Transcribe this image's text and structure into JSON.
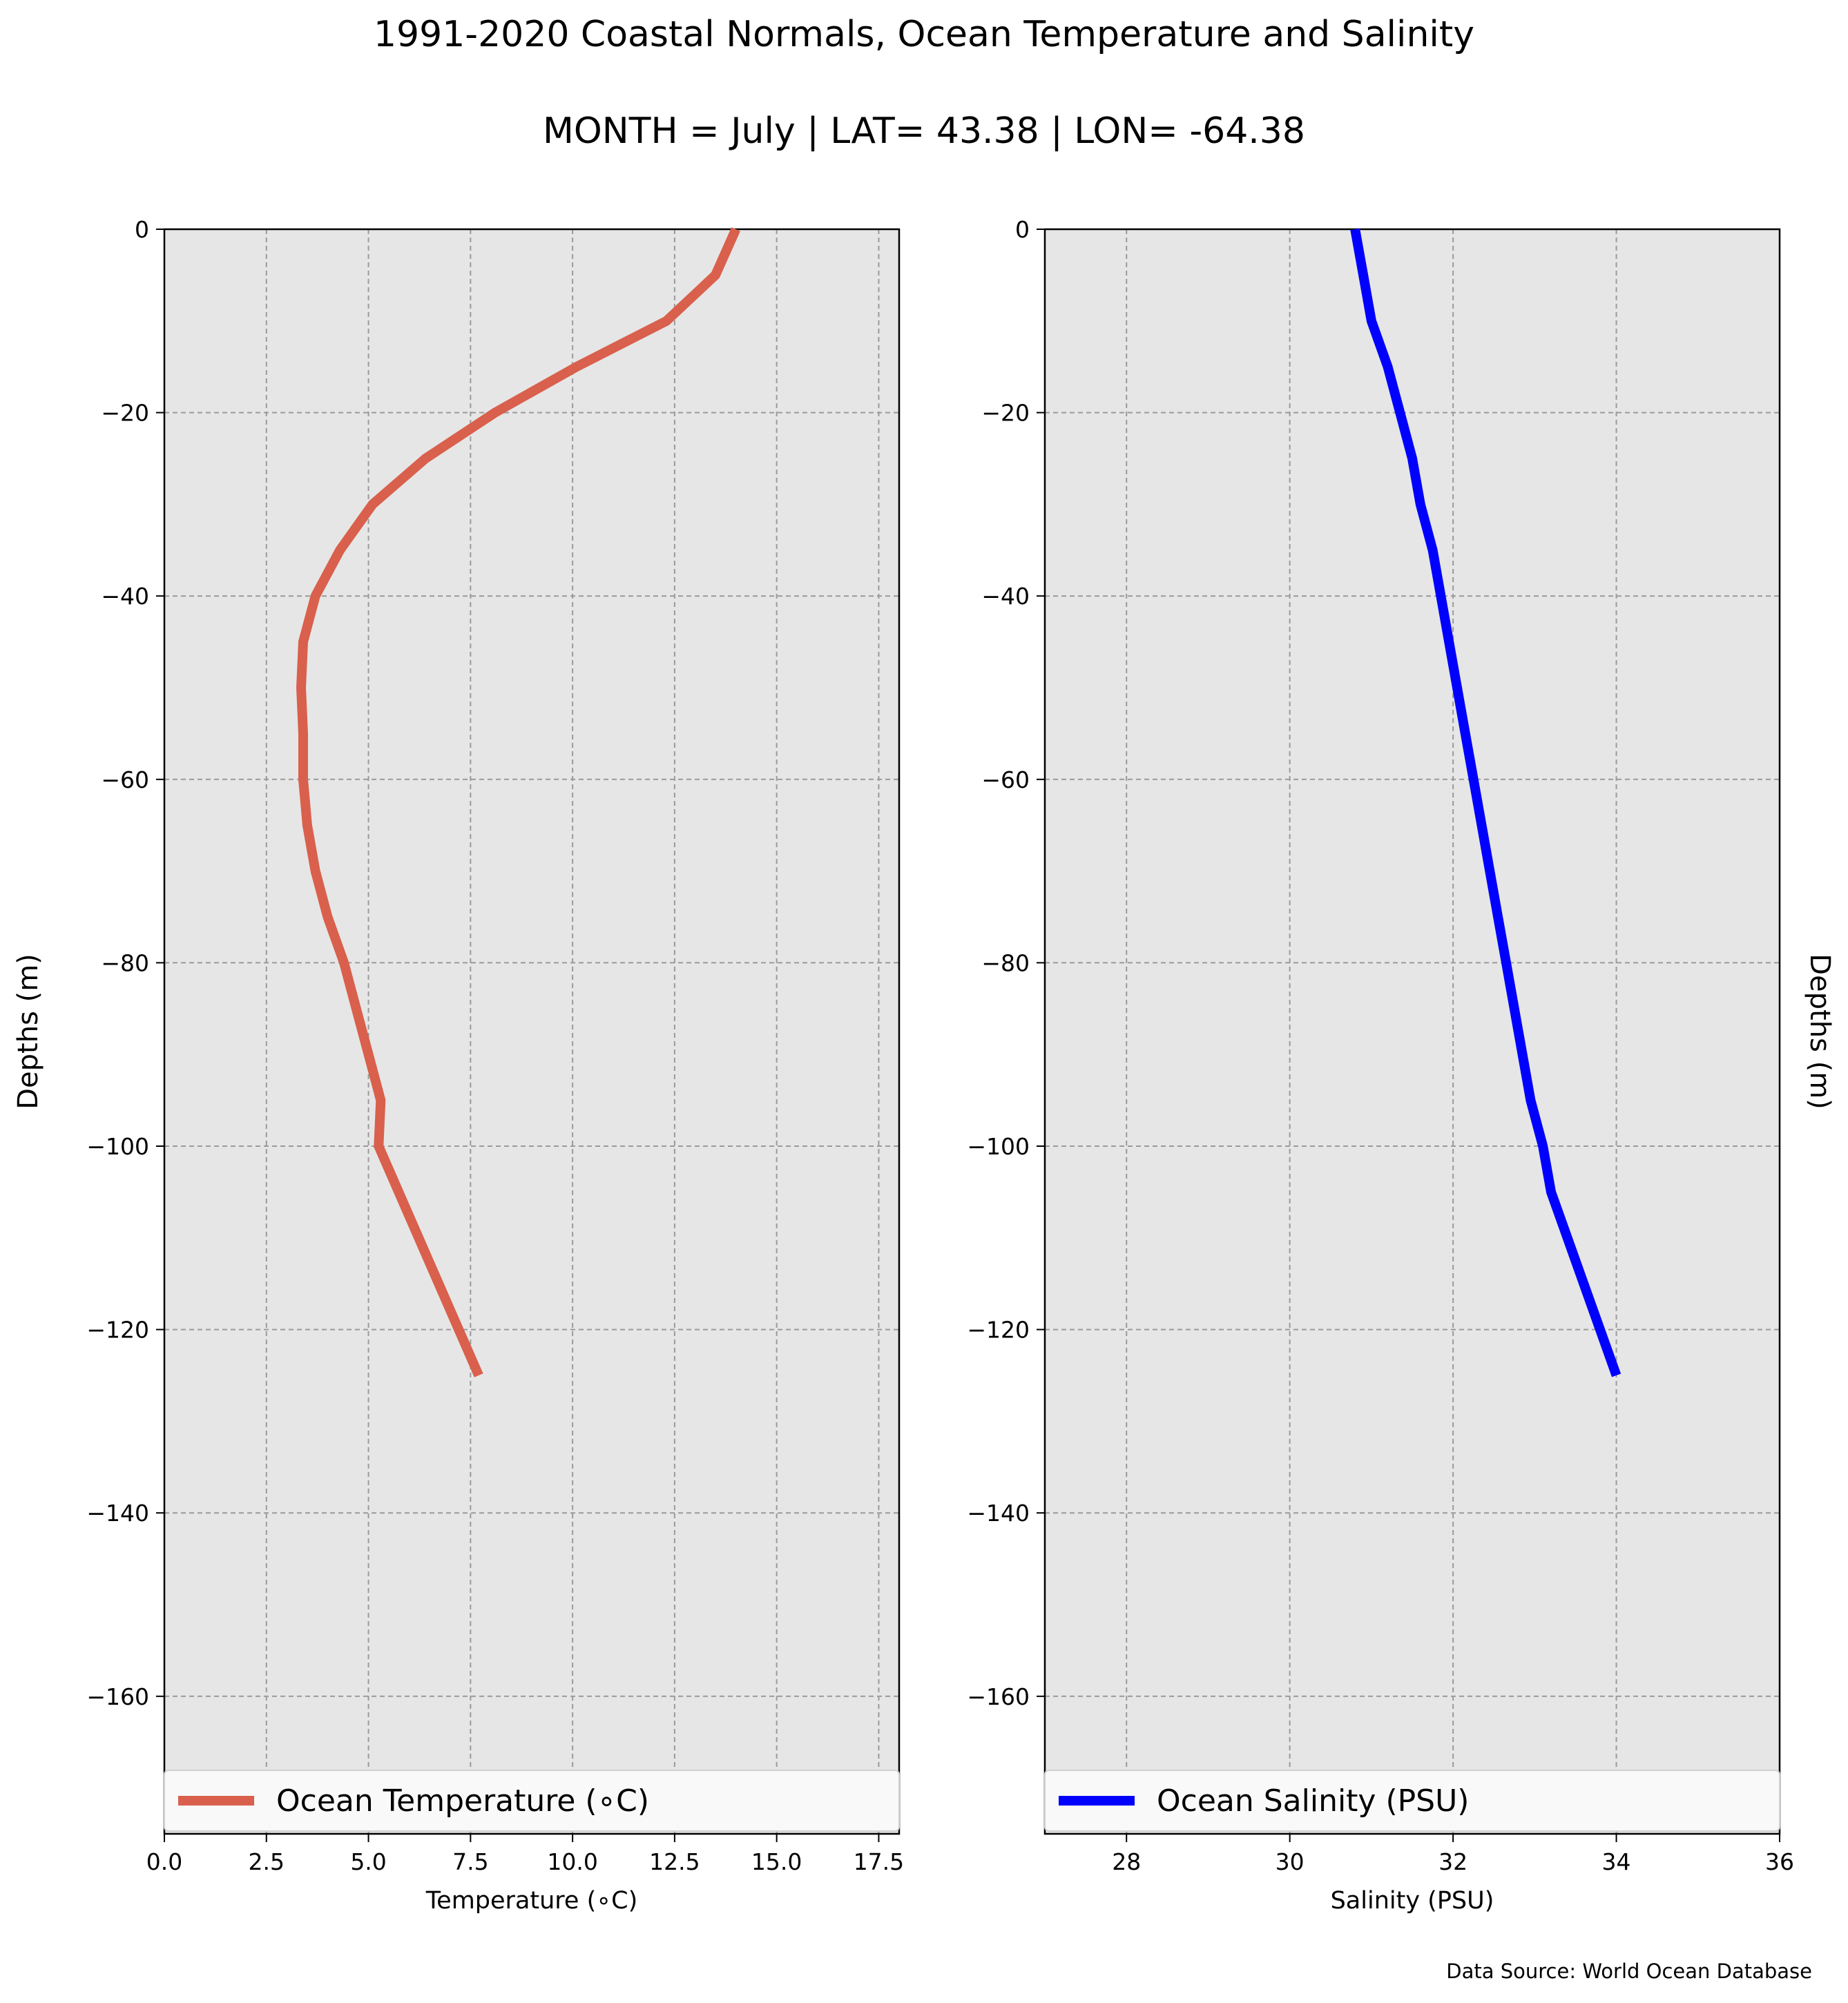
{
  "figure": {
    "title": "1991-2020 Coastal Normals, Ocean Temperature and Salinity",
    "subtitle": "MONTH = July | LAT= 43.38 | LON= -64.38",
    "source": "Data Source: World Ocean Database"
  },
  "colors": {
    "temperature": "#d9604c",
    "salinity": "#0000ff",
    "plot_bg": "#e6e6e6",
    "grid": "#9a9a9a"
  },
  "chart_data": [
    {
      "type": "line",
      "xlabel": "Temperature (∘C)",
      "ylabel": "Depths (m)",
      "xlim": [
        0,
        18
      ],
      "ylim": [
        -175,
        0
      ],
      "xticks": [
        0.0,
        2.5,
        5.0,
        7.5,
        10.0,
        12.5,
        15.0,
        17.5
      ],
      "xtick_labels": [
        "0.0",
        "2.5",
        "5.0",
        "7.5",
        "10.0",
        "12.5",
        "15.0",
        "17.5"
      ],
      "yticks": [
        0,
        -20,
        -40,
        -60,
        -80,
        -100,
        -120,
        -140,
        -160
      ],
      "ytick_labels": [
        "0",
        "−20",
        "−40",
        "−60",
        "−80",
        "−100",
        "−120",
        "−140",
        "−160"
      ],
      "grid": true,
      "legend_position": "bottom",
      "series": [
        {
          "name": "Ocean Temperature (∘C)",
          "x": [
            14.0,
            13.5,
            12.3,
            10.1,
            8.1,
            6.4,
            5.1,
            4.3,
            3.7,
            3.4,
            3.35,
            3.4,
            3.4,
            3.5,
            3.7,
            4.0,
            4.4,
            4.7,
            5.0,
            5.3,
            5.25,
            7.7
          ],
          "y": [
            0,
            -5,
            -10,
            -15,
            -20,
            -25,
            -30,
            -35,
            -40,
            -45,
            -50,
            -55,
            -60,
            -65,
            -70,
            -75,
            -80,
            -85,
            -90,
            -95,
            -100,
            -125
          ]
        }
      ]
    },
    {
      "type": "line",
      "xlabel": "Salinity (PSU)",
      "ylabel": "Depths (m)",
      "xlim": [
        27,
        36
      ],
      "ylim": [
        -175,
        0
      ],
      "xticks": [
        28,
        30,
        32,
        34,
        36
      ],
      "xtick_labels": [
        "28",
        "30",
        "32",
        "34",
        "36"
      ],
      "yticks": [
        0,
        -20,
        -40,
        -60,
        -80,
        -100,
        -120,
        -140,
        -160
      ],
      "ytick_labels": [
        "0",
        "−20",
        "−40",
        "−60",
        "−80",
        "−100",
        "−120",
        "−140",
        "−160"
      ],
      "grid": true,
      "legend_position": "bottom",
      "series": [
        {
          "name": "Ocean Salinity (PSU)",
          "x": [
            30.8,
            30.9,
            31.0,
            31.2,
            31.35,
            31.5,
            31.6,
            31.75,
            31.85,
            31.95,
            32.05,
            32.15,
            32.25,
            32.35,
            32.45,
            32.55,
            32.65,
            32.75,
            32.85,
            32.95,
            33.1,
            33.2,
            34.0
          ],
          "y": [
            0,
            -5,
            -10,
            -15,
            -20,
            -25,
            -30,
            -35,
            -40,
            -45,
            -50,
            -55,
            -60,
            -65,
            -70,
            -75,
            -80,
            -85,
            -90,
            -95,
            -100,
            -105,
            -125
          ]
        }
      ]
    }
  ]
}
